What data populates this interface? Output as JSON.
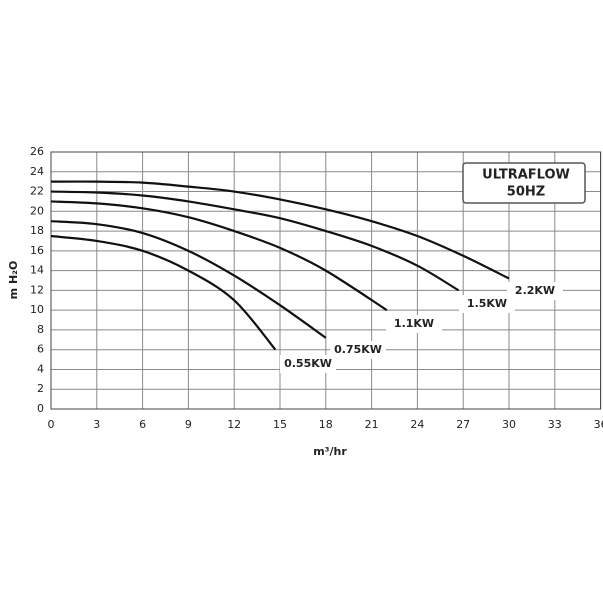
{
  "chart_data": {
    "type": "line",
    "xlabel": "m³/hr",
    "ylabel": "m H₂O",
    "annotation": [
      "ULTRAFLOW",
      "50HZ"
    ],
    "xlim": [
      0,
      36
    ],
    "xticks": [
      0,
      3,
      6,
      9,
      12,
      15,
      18,
      21,
      24,
      27,
      30,
      33,
      36
    ],
    "ylim": [
      0,
      26
    ],
    "yticks": [
      0,
      2,
      4,
      6,
      8,
      10,
      12,
      14,
      16,
      18,
      20,
      22,
      24,
      26
    ],
    "grid": true,
    "series": [
      {
        "name": "0.55KW",
        "color": "#111111",
        "x": [
          0,
          3,
          6,
          9,
          12,
          14.7
        ],
        "values": [
          17.5,
          17,
          16,
          14,
          11,
          6
        ]
      },
      {
        "name": "0.75KW",
        "color": "#111111",
        "x": [
          0,
          3,
          6,
          9,
          12,
          15,
          18
        ],
        "values": [
          19,
          18.7,
          17.8,
          16,
          13.5,
          10.5,
          7.2
        ]
      },
      {
        "name": "1.1KW",
        "color": "#111111",
        "x": [
          0,
          3,
          6,
          9,
          12,
          15,
          18,
          22
        ],
        "values": [
          21,
          20.8,
          20.3,
          19.4,
          18,
          16.3,
          14,
          10
        ]
      },
      {
        "name": "1.5KW",
        "color": "#111111",
        "x": [
          0,
          3,
          6,
          9,
          12,
          15,
          18,
          21,
          24,
          26.7
        ],
        "values": [
          22,
          21.9,
          21.6,
          21,
          20.2,
          19.3,
          18,
          16.5,
          14.5,
          12
        ]
      },
      {
        "name": "2.2KW",
        "color": "#111111",
        "x": [
          0,
          3,
          6,
          9,
          12,
          15,
          18,
          21,
          24,
          27,
          30
        ],
        "values": [
          23,
          23,
          22.9,
          22.5,
          22,
          21.2,
          20.2,
          19,
          17.5,
          15.5,
          13.2
        ]
      }
    ]
  }
}
